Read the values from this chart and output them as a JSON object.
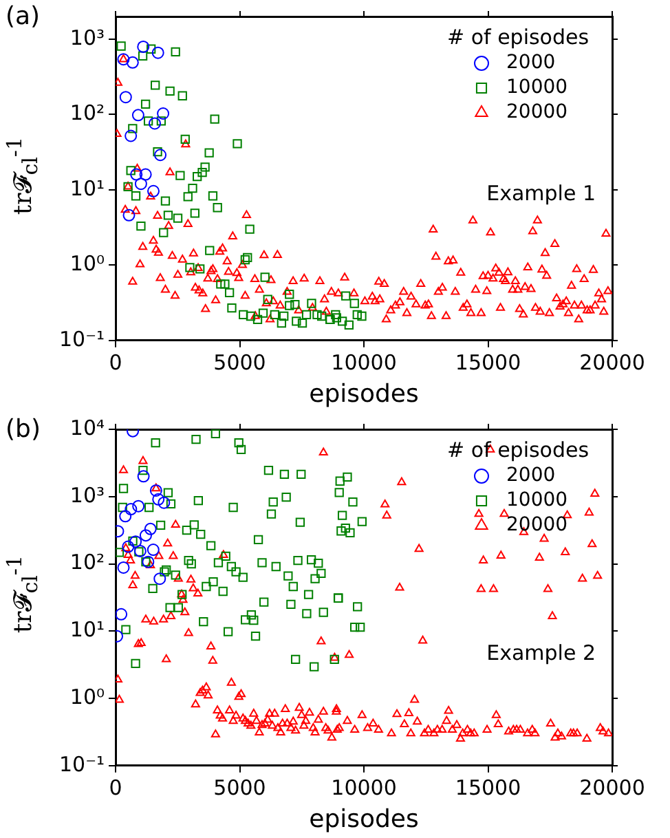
{
  "chart_data": [
    {
      "type": "scatter",
      "ylabel": "tr𝓕$_{cl}$$^{-1}$",
      "xlabel": "episodes",
      "legend_title": "# of episodes",
      "legend": "top right",
      "log": true,
      "grid": false,
      "annotations": [
        "(a)",
        "Example 1"
      ],
      "xlim": [
        0,
        20000
      ],
      "xticks": [
        0,
        5000,
        10000,
        15000,
        20000
      ],
      "ylim": [
        0.1,
        2000
      ],
      "yticks": [
        {
          "value": 0.1,
          "label": "10⁻¹"
        },
        {
          "value": 1,
          "label": "10⁰"
        },
        {
          "value": 10,
          "label": "10¹"
        },
        {
          "value": 100,
          "label": "10²"
        },
        {
          "value": 1000,
          "label": "10³"
        }
      ],
      "series": [
        {
          "name": "2000",
          "color": "#0000ff",
          "marker": "circle",
          "x": [
            1114,
            1708,
            687,
            316,
            409,
            910,
            1913,
            1578,
            613,
            1801,
            836,
            1207,
            1021,
            1523,
            539
          ],
          "values": [
            794,
            660,
            490,
            540,
            170,
            98,
            103,
            76,
            52,
            29,
            16,
            16,
            12,
            9.6,
            4.6
          ]
        },
        {
          "name": "10000",
          "color": "#008000",
          "marker": "square",
          "x": [
            223,
            1096,
            1430,
            2414,
            1597,
            2191,
            2693,
            1207,
            1318,
            1838,
            687,
            3993,
            4903,
            2804,
            3770,
            1690,
            613,
            3603,
            3491,
            3287,
            2600,
            501,
            3102,
            817,
            2915,
            3918,
            2006,
            4104,
            3194,
            2117,
            2507,
            1931,
            1021,
            5404,
            3788,
            5218,
            5311,
            2990,
            3398,
            6017,
            7001,
            4234,
            4401,
            4587,
            4680,
            5144,
            5441,
            5720,
            5942,
            6128,
            6407,
            6685,
            6778,
            7001,
            7224,
            7280,
            7521,
            7688,
            7893,
            8115,
            8301,
            8636,
            8859,
            9270,
            9618,
            9916,
            9400,
            9130,
            8640,
            8900,
            9730
          ],
          "values": [
            810,
            600,
            740,
            680,
            245,
            205,
            177,
            137,
            82,
            82,
            65,
            87,
            41,
            47,
            31,
            32,
            18,
            20,
            17,
            15,
            15.5,
            11,
            10.5,
            8.3,
            8.1,
            8.3,
            7.1,
            5.8,
            4.9,
            4.6,
            4.2,
            2.7,
            3.3,
            3.0,
            1.56,
            1.18,
            1.26,
            0.93,
            0.89,
            0.69,
            0.41,
            0.56,
            0.56,
            0.43,
            0.27,
            0.22,
            0.21,
            0.19,
            0.23,
            0.35,
            0.22,
            0.17,
            0.21,
            0.29,
            0.3,
            0.18,
            0.17,
            0.22,
            0.31,
            0.22,
            0.21,
            0.19,
            0.22,
            0.39,
            0.31,
            0.21,
            0.16,
            0.18,
            0.19,
            0.2,
            0.22
          ]
        },
        {
          "name": "20000",
          "color": "#ff0000",
          "marker": "triangle",
          "x": [
            93,
            316,
            56,
            501,
            873,
            390,
            817,
            1411,
            2191,
            2822,
            1690,
            2136,
            2915,
            1096,
            1523,
            1634,
            1727,
            984,
            687,
            1801,
            2284,
            2693,
            2006,
            2396,
            2507,
            3027,
            3139,
            3325,
            3213,
            3362,
            3510,
            3715,
            3844,
            3918,
            3621,
            4030,
            4104,
            4197,
            4308,
            4494,
            4549,
            4717,
            4884,
            5274,
            5107,
            4958,
            5218,
            5608,
            5979,
            6518,
            6258,
            5794,
            6072,
            6351,
            6630,
            6908,
            7150,
            7595,
            8227,
            8413,
            8691,
            8970,
            5627,
            6221,
            7373,
            7930,
            8487,
            9226,
            9600,
            10040,
            10340,
            10600,
            10820,
            10450,
            10640,
            10900,
            11080,
            11270,
            11450,
            11600,
            11730,
            11900,
            12100,
            12290,
            12470,
            12600,
            12720,
            12790,
            12900,
            13000,
            13160,
            13310,
            13400,
            13590,
            13680,
            13900,
            14000,
            14150,
            14310,
            14390,
            14500,
            14720,
            14800,
            14950,
            15100,
            15000,
            15200,
            15310,
            15440,
            15500,
            15620,
            15700,
            15800,
            15990,
            16100,
            16200,
            16270,
            16420,
            16490,
            16600,
            16730,
            16800,
            16990,
            16910,
            17170,
            17360,
            17100,
            17300,
            17470,
            17690,
            17760,
            17900,
            18020,
            18150,
            18240,
            18360,
            18480,
            18570,
            18650,
            18760,
            18870,
            18990,
            19110,
            19240,
            19310,
            19460,
            19570,
            19660,
            19750,
            19830
          ],
          "values": [
            263,
            540,
            55,
            11,
            19,
            5.4,
            5.2,
            8.1,
            17,
            40,
            4.5,
            3.3,
            3.5,
            1.74,
            2.1,
            1.6,
            1.45,
            1.02,
            0.6,
            0.67,
            1.32,
            1.18,
            0.47,
            0.39,
            0.74,
            0.8,
            1.42,
            0.91,
            0.5,
            0.46,
            0.42,
            0.66,
            0.83,
            0.88,
            0.26,
            0.34,
            0.65,
            1.5,
            1.66,
            1.12,
            0.81,
            2.4,
            0.78,
            4.6,
            1.0,
            0.67,
            0.39,
            0.65,
            1.35,
            1.36,
            0.63,
            0.47,
            0.31,
            0.33,
            0.29,
            0.44,
            0.61,
            0.66,
            0.61,
            0.35,
            0.44,
            0.42,
            0.21,
            0.19,
            0.25,
            0.27,
            0.24,
            0.68,
            0.42,
            0.33,
            0.38,
            0.6,
            0.56,
            0.33,
            0.35,
            0.19,
            0.25,
            0.29,
            0.32,
            0.44,
            0.23,
            0.38,
            0.3,
            0.56,
            0.29,
            0.3,
            0.21,
            2.95,
            1.29,
            0.44,
            0.5,
            0.21,
            1.12,
            1.15,
            0.44,
            0.79,
            0.27,
            0.3,
            0.23,
            3.9,
            0.47,
            0.23,
            0.71,
            0.45,
            2.7,
            0.72,
            0.66,
            0.9,
            0.79,
            0.27,
            0.65,
            0.61,
            0.8,
            0.47,
            0.61,
            0.47,
            0.26,
            0.22,
            0.51,
            0.93,
            0.48,
            2.8,
            3.9,
            0.27,
            0.87,
            0.72,
            0.24,
            1.44,
            0.23,
            1.9,
            0.36,
            0.28,
            0.3,
            0.33,
            0.23,
            0.53,
            0.29,
            0.88,
            0.19,
            0.29,
            0.65,
            0.25,
            0.25,
            0.86,
            0.29,
            0.42,
            0.35,
            0.24,
            2.6,
            0.45
          ]
        }
      ]
    },
    {
      "type": "scatter",
      "ylabel": "tr𝓕$_{cl}$$^{-1}$",
      "xlabel": "episodes",
      "legend_title": "# of episodes",
      "legend": "top right",
      "log": true,
      "grid": false,
      "annotations": [
        "(b)",
        "Example 2"
      ],
      "xlim": [
        0,
        20000
      ],
      "xticks": [
        0,
        5000,
        10000,
        15000,
        20000
      ],
      "ylim": [
        0.1,
        10000
      ],
      "yticks": [
        {
          "value": 0.1,
          "label": "10⁻¹"
        },
        {
          "value": 1,
          "label": "10⁰"
        },
        {
          "value": 10,
          "label": "10¹"
        },
        {
          "value": 100,
          "label": "10²"
        },
        {
          "value": 1000,
          "label": "10³"
        },
        {
          "value": 10000,
          "label": "10⁴"
        }
      ],
      "series": [
        {
          "name": "2000",
          "color": "#0000ff",
          "marker": "circle",
          "x": [
            693,
            1124,
            1723,
            1948,
            1629,
            618,
            918,
            393,
            94,
            1404,
            1217,
            805,
            506,
            1517,
            993,
            1311,
            318,
            1779,
            225,
            56
          ],
          "values": [
            9400,
            2000,
            910,
            810,
            1230,
            650,
            720,
            510,
            305,
            330,
            265,
            214,
            180,
            162,
            155,
            107,
            88,
            60,
            17.8,
            8.4
          ]
        },
        {
          "name": "10000",
          "color": "#008000",
          "marker": "square",
          "x": [
            412,
            805,
            150,
            318,
            281,
            693,
            937,
            1105,
            1217,
            1348,
            1610,
            2116,
            2228,
            1816,
            1966,
            2041,
            1498,
            2191,
            2528,
            2416,
            2678,
            2865,
            2940,
            3052,
            3165,
            3333,
            3240,
            3427,
            3539,
            3652,
            3839,
            3933,
            4026,
            4326,
            4139,
            4438,
            4532,
            4663,
            4738,
            4850,
            4963,
            5056,
            5131,
            5225,
            5468,
            5562,
            5637,
            5749,
            5899,
            5974,
            6161,
            6273,
            6348,
            6461,
            6798,
            6873,
            6948,
            7060,
            7154,
            7247,
            7341,
            7434,
            7472,
            7697,
            7772,
            7884,
            7996,
            8034,
            8165,
            8277,
            8371,
            8970,
            9082,
            9007,
            9037,
            9333,
            9555,
            9130,
            9259,
            9444,
            9926,
            8963,
            9741,
            9630,
            9852,
            8815
          ],
          "values": [
            10.5,
            3.3,
            148,
            1320,
            690,
            218,
            151,
            2460,
            107,
            690,
            6300,
            1140,
            780,
            375,
            76,
            81,
            43,
            22.4,
            22.4,
            68,
            35,
            316,
            112,
            100,
            380,
            870,
            7100,
            275,
            13.8,
            46,
            186,
            54,
            8600,
            39,
            104,
            130,
            9.8,
            91,
            690,
            76,
            6300,
            5000,
            63,
            14.7,
            17.4,
            14.5,
            8.4,
            229,
            104,
            27,
            2460,
            550,
            830,
            91,
            2140,
            980,
            66,
            25,
            46,
            3.8,
            112,
            415,
            2140,
            18.2,
            35,
            115,
            2.95,
            60,
            102,
            72,
            19,
            31,
            308,
            1150,
            1700,
            1950,
            830,
            525,
            340,
            290,
            425,
            31,
            23,
            11.4,
            11.4,
            3.8
          ]
        },
        {
          "name": "20000",
          "color": "#ff0000",
          "marker": "triangle",
          "x": [
            94,
            150,
            318,
            1105,
            1629,
            412,
            506,
            599,
            693,
            787,
            1030,
            918,
            1217,
            1535,
            1404,
            1742,
            1929,
            2097,
            2041,
            2228,
            2322,
            2416,
            2528,
            2659,
            2715,
            2790,
            2940,
            3034,
            3127,
            3315,
            3221,
            3408,
            3502,
            3652,
            3727,
            3839,
            3914,
            4026,
            4101,
            4345,
            4214,
            4307,
            4588,
            4663,
            4738,
            4850,
            4963,
            5056,
            5131,
            5225,
            5337,
            5449,
            5562,
            5674,
            5787,
            5899,
            6011,
            6124,
            6199,
            6311,
            6405,
            6536,
            6648,
            6723,
            6835,
            6910,
            7060,
            7154,
            7247,
            7397,
            7491,
            7584,
            7659,
            7809,
            7959,
            8034,
            8165,
            8277,
            8371,
            8465,
            8558,
            8708,
            8820,
            8895,
            9007,
            8371,
            9407,
            8889,
            9333,
            8926,
            9630,
            9926,
            10150,
            10370,
            10590,
            10850,
            10920,
            11110,
            11330,
            11520,
            11440,
            11630,
            11810,
            11890,
            12040,
            12150,
            12220,
            12370,
            12440,
            12590,
            12820,
            12960,
            13150,
            13330,
            13410,
            13560,
            13740,
            13890,
            13980,
            14170,
            14300,
            14440,
            14630,
            14720,
            14810,
            14960,
            15090,
            15220,
            15330,
            15410,
            15520,
            15650,
            15830,
            16020,
            16150,
            16300,
            16440,
            16590,
            16780,
            16890,
            17070,
            17260,
            17410,
            17520,
            17590,
            17700,
            17810,
            17960,
            18110,
            18190,
            18330,
            18440,
            18590,
            18800,
            18980,
            19070,
            19190,
            19300,
            19410,
            19520,
            19630,
            19850
          ],
          "values": [
            1.9,
            0.95,
            2460,
            3370,
            1320,
            170,
            135,
            112,
            48,
            66,
            6.6,
            6.4,
            14.8,
            13.8,
            95,
            130,
            14.8,
            200,
            3.8,
            16.6,
            130,
            380,
            60,
            35,
            29,
            19,
            9.3,
            58,
            43,
            36,
            0.81,
            1.2,
            1.3,
            1.45,
            1.1,
            5.9,
            3.6,
            0.29,
            0.66,
            135,
            0.55,
            0.5,
            0.66,
            1.7,
            0.46,
            0.55,
            1.05,
            1.15,
            0.5,
            0.46,
            0.42,
            0.39,
            0.59,
            0.46,
            0.31,
            0.4,
            0.42,
            0.48,
            0.59,
            0.39,
            0.59,
            0.36,
            0.31,
            0.42,
            0.69,
            0.42,
            0.36,
            0.45,
            0.33,
            0.72,
            0.56,
            0.39,
            0.46,
            0.61,
            0.36,
            0.31,
            0.48,
            7.0,
            0.63,
            0.36,
            0.33,
            0.26,
            4.0,
            0.69,
            0.36,
            4500,
            4.4,
            0.63,
            0.46,
            0.34,
            0.34,
            0.56,
            0.36,
            0.42,
            0.34,
            760,
            520,
            0.3,
            0.58,
            1630,
            44,
            0.41,
            0.6,
            0.3,
            0.95,
            0.45,
            166,
            7.2,
            0.3,
            0.34,
            0.3,
            0.34,
            0.34,
            0.46,
            0.65,
            0.34,
            0.4,
            0.25,
            0.3,
            0.34,
            0.3,
            0.3,
            550,
            42,
            112,
            0.34,
            5000,
            42,
            0.56,
            0.41,
            132,
            550,
            0.32,
            0.34,
            0.34,
            0.34,
            295,
            0.3,
            0.34,
            0.3,
            123,
            235,
            42,
            0.42,
            16.6,
            0.26,
            0.3,
            0.27,
            148,
            525,
            0.3,
            0.3,
            0.3,
            60,
            0.25,
            575,
            195,
            1100,
            66,
            0.36,
            0.32,
            0.3
          ]
        }
      ]
    }
  ]
}
